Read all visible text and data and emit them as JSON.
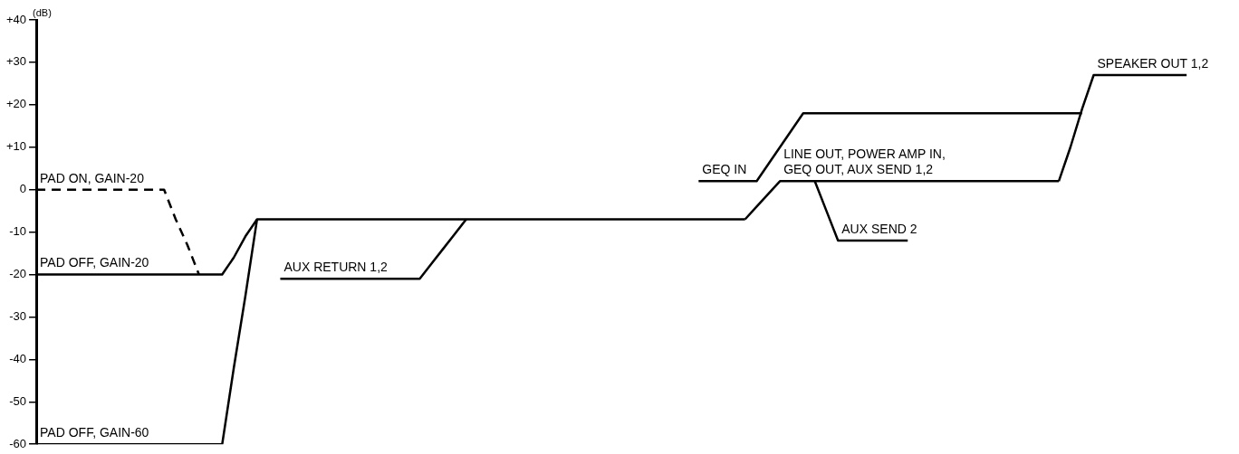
{
  "chart_data": {
    "type": "line",
    "ylabel": "(dB)",
    "categories": [
      null,
      null,
      null,
      null,
      null,
      null,
      null,
      null,
      null,
      null,
      null,
      null,
      null,
      null,
      null,
      null,
      null,
      null,
      null,
      null,
      null,
      null,
      null,
      null,
      null,
      null,
      null,
      null,
      null,
      null,
      null,
      null,
      null,
      null,
      null,
      null,
      null,
      null,
      null,
      null,
      null,
      null,
      null,
      null,
      null,
      null,
      null,
      null,
      null,
      null,
      null,
      null,
      null,
      null,
      null,
      null,
      null,
      null,
      null,
      null,
      null,
      null,
      null,
      null,
      null,
      null,
      null,
      null,
      null,
      null,
      null,
      null,
      null,
      null,
      null,
      null,
      null,
      null,
      null,
      null,
      null,
      null,
      null,
      null,
      null,
      null,
      null,
      null,
      null,
      null,
      null,
      null,
      null,
      null,
      null,
      null,
      null,
      null,
      null,
      null,
      null
    ],
    "ylim": [
      -60,
      40
    ],
    "yticks": [
      {
        "value": 40,
        "label": "+40"
      },
      {
        "value": 30,
        "label": "+30"
      },
      {
        "value": 20,
        "label": "+20"
      },
      {
        "value": 10,
        "label": "+10"
      },
      0,
      -10,
      -20,
      -30,
      -40,
      -50,
      -60
    ],
    "tick_labels": "y",
    "grid": false,
    "legend": false,
    "marker": "none",
    "line_style": "solid",
    "series": [
      {
        "name": "PAD OFF, GAIN-20",
        "color": "#000000",
        "values": [
          -20,
          -20,
          -20,
          -20,
          -20,
          -20,
          -20,
          -20,
          -20,
          -20,
          -20,
          -20,
          -20,
          -20,
          -20,
          -20,
          -20,
          -16,
          -11,
          -7,
          -7,
          -7,
          -7,
          -7,
          -7,
          -7,
          -7,
          -7,
          -7,
          -7,
          -7,
          -7,
          -7,
          -7,
          -7,
          -7,
          -7,
          -7,
          -7,
          -7,
          -7,
          -7,
          -7,
          -7,
          -7,
          -7,
          -7,
          -7,
          -7,
          -7,
          -7,
          -7,
          -7,
          -7,
          -7,
          -7,
          -7,
          -7,
          -7,
          -7,
          -7,
          -7,
          null,
          null,
          null,
          null,
          null,
          null,
          null,
          null,
          null,
          null,
          null,
          null,
          null,
          null,
          null,
          null,
          null,
          null,
          null,
          null,
          null,
          null,
          null,
          null,
          null,
          null,
          null,
          null,
          null,
          null,
          null,
          null,
          null,
          null,
          null,
          null,
          null,
          null,
          null
        ]
      },
      {
        "name": "PAD ON, GAIN-20",
        "color": "#000000",
        "line_style": "dashed",
        "values": [
          0,
          0,
          0,
          0,
          0,
          0,
          0,
          0,
          0,
          0,
          0,
          0,
          -7,
          -13,
          -20,
          null,
          null,
          null,
          null,
          null,
          null,
          null,
          null,
          null,
          null,
          null,
          null,
          null,
          null,
          null,
          null,
          null,
          null,
          null,
          null,
          null,
          null,
          null,
          null,
          null,
          null,
          null,
          null,
          null,
          null,
          null,
          null,
          null,
          null,
          null,
          null,
          null,
          null,
          null,
          null,
          null,
          null,
          null,
          null,
          null,
          null,
          null,
          null,
          null,
          null,
          null,
          null,
          null,
          null,
          null,
          null,
          null,
          null,
          null,
          null,
          null,
          null,
          null,
          null,
          null,
          null,
          null,
          null,
          null,
          null,
          null,
          null,
          null,
          null,
          null,
          null,
          null,
          null,
          null,
          null,
          null,
          null,
          null,
          null,
          null,
          null
        ]
      },
      {
        "name": "PAD OFF, GAIN-60",
        "color": "#000000",
        "values": [
          -60,
          -60,
          -60,
          -60,
          -60,
          -60,
          -60,
          -60,
          -60,
          -60,
          -60,
          -60,
          -60,
          -60,
          -60,
          -60,
          -60,
          -42,
          -25,
          -7,
          null,
          null,
          null,
          null,
          null,
          null,
          null,
          null,
          null,
          null,
          null,
          null,
          null,
          null,
          null,
          null,
          null,
          null,
          null,
          null,
          null,
          null,
          null,
          null,
          null,
          null,
          null,
          null,
          null,
          null,
          null,
          null,
          null,
          null,
          null,
          null,
          null,
          null,
          null,
          null,
          null,
          null,
          null,
          null,
          null,
          null,
          null,
          null,
          null,
          null,
          null,
          null,
          null,
          null,
          null,
          null,
          null,
          null,
          null,
          null,
          null,
          null,
          null,
          null,
          null,
          null,
          null,
          null,
          null,
          null,
          null,
          null,
          null,
          null,
          null,
          null,
          null,
          null,
          null,
          null,
          null
        ]
      },
      {
        "name": "AUX RETURN 1,2",
        "color": "#000000",
        "values": [
          null,
          null,
          null,
          null,
          null,
          null,
          null,
          null,
          null,
          null,
          null,
          null,
          null,
          null,
          null,
          null,
          null,
          null,
          null,
          null,
          null,
          -21,
          -21,
          -21,
          -21,
          -21,
          -21,
          -21,
          -21,
          -21,
          -21,
          -21,
          -21,
          -21,
          -17.5,
          -14,
          -10.5,
          -7,
          null,
          null,
          null,
          null,
          null,
          null,
          null,
          null,
          null,
          null,
          null,
          null,
          null,
          null,
          null,
          null,
          null,
          null,
          null,
          null,
          null,
          null,
          null,
          null,
          null,
          null,
          null,
          null,
          null,
          null,
          null,
          null,
          null,
          null,
          null,
          null,
          null,
          null,
          null,
          null,
          null,
          null,
          null,
          null,
          null,
          null,
          null,
          null,
          null,
          null,
          null,
          null,
          null,
          null,
          null,
          null,
          null,
          null,
          null,
          null,
          null,
          null,
          null
        ]
      },
      {
        "name": "GEQ IN",
        "color": "#000000",
        "values": [
          null,
          null,
          null,
          null,
          null,
          null,
          null,
          null,
          null,
          null,
          null,
          null,
          null,
          null,
          null,
          null,
          null,
          null,
          null,
          null,
          null,
          null,
          null,
          null,
          null,
          null,
          null,
          null,
          null,
          null,
          null,
          null,
          null,
          null,
          null,
          null,
          null,
          null,
          null,
          null,
          null,
          null,
          null,
          null,
          null,
          null,
          null,
          null,
          null,
          null,
          null,
          null,
          null,
          null,
          null,
          null,
          null,
          2,
          2,
          2,
          2,
          2,
          2,
          6,
          10,
          14,
          18,
          18,
          18,
          18,
          18,
          18,
          18,
          18,
          18,
          18,
          18,
          18,
          18,
          18,
          18,
          18,
          18,
          18,
          18,
          18,
          18,
          18,
          18,
          18,
          18,
          null,
          null,
          null,
          null,
          null,
          null,
          null,
          null,
          null,
          null
        ]
      },
      {
        "name": "LINE OUT, POWER AMP IN,\nGEQ OUT, AUX SEND 1,2",
        "color": "#000000",
        "values": [
          null,
          null,
          null,
          null,
          null,
          null,
          null,
          null,
          null,
          null,
          null,
          null,
          null,
          null,
          null,
          null,
          null,
          null,
          null,
          null,
          null,
          null,
          null,
          null,
          null,
          null,
          null,
          null,
          null,
          null,
          null,
          null,
          null,
          null,
          null,
          null,
          null,
          null,
          null,
          null,
          null,
          null,
          null,
          null,
          null,
          null,
          null,
          null,
          null,
          null,
          null,
          null,
          null,
          null,
          null,
          null,
          null,
          null,
          null,
          null,
          null,
          -7,
          -4,
          -1,
          2,
          2,
          2,
          2,
          2,
          2,
          2,
          2,
          2,
          2,
          2,
          2,
          2,
          2,
          2,
          2,
          2,
          2,
          2,
          2,
          2,
          2,
          2,
          2,
          2,
          null,
          null,
          null,
          null,
          null,
          null,
          null,
          null,
          null,
          null,
          null,
          null
        ]
      },
      {
        "name": "AUX SEND 2",
        "color": "#000000",
        "values": [
          null,
          null,
          null,
          null,
          null,
          null,
          null,
          null,
          null,
          null,
          null,
          null,
          null,
          null,
          null,
          null,
          null,
          null,
          null,
          null,
          null,
          null,
          null,
          null,
          null,
          null,
          null,
          null,
          null,
          null,
          null,
          null,
          null,
          null,
          null,
          null,
          null,
          null,
          null,
          null,
          null,
          null,
          null,
          null,
          null,
          null,
          null,
          null,
          null,
          null,
          null,
          null,
          null,
          null,
          null,
          null,
          null,
          null,
          null,
          null,
          null,
          null,
          null,
          null,
          null,
          null,
          null,
          2,
          -5,
          -12,
          -12,
          -12,
          -12,
          -12,
          -12,
          -12,
          null,
          null,
          null,
          null,
          null,
          null,
          null,
          null,
          null,
          null,
          null,
          null,
          null,
          null,
          null,
          null,
          null,
          null,
          null,
          null,
          null,
          null,
          null,
          null,
          null
        ]
      },
      {
        "name": "SPEAKER OUT 1,2",
        "color": "#000000",
        "values": [
          null,
          null,
          null,
          null,
          null,
          null,
          null,
          null,
          null,
          null,
          null,
          null,
          null,
          null,
          null,
          null,
          null,
          null,
          null,
          null,
          null,
          null,
          null,
          null,
          null,
          null,
          null,
          null,
          null,
          null,
          null,
          null,
          null,
          null,
          null,
          null,
          null,
          null,
          null,
          null,
          null,
          null,
          null,
          null,
          null,
          null,
          null,
          null,
          null,
          null,
          null,
          null,
          null,
          null,
          null,
          null,
          null,
          null,
          null,
          null,
          null,
          null,
          null,
          null,
          null,
          null,
          null,
          null,
          null,
          null,
          null,
          null,
          null,
          null,
          null,
          null,
          null,
          null,
          null,
          null,
          null,
          null,
          null,
          null,
          null,
          null,
          null,
          null,
          2,
          10,
          19,
          27,
          27,
          27,
          27,
          27,
          27,
          27,
          27,
          27,
          null
        ]
      }
    ]
  }
}
